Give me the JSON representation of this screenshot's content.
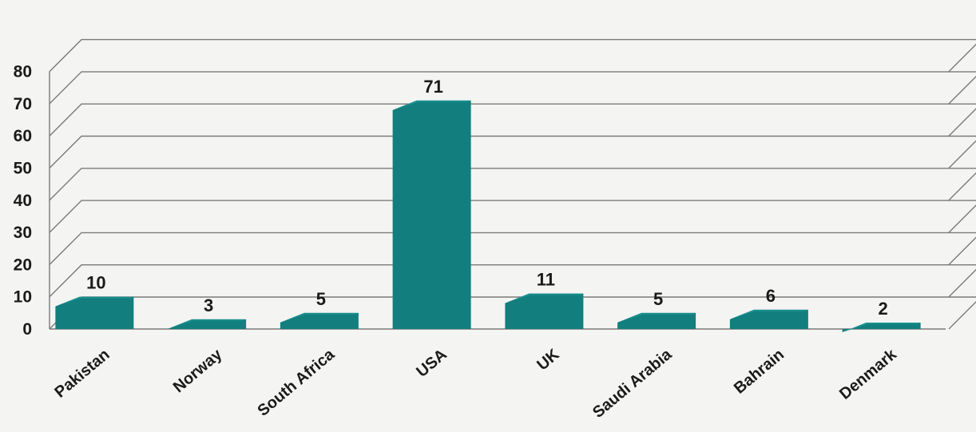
{
  "chart_data": {
    "type": "bar",
    "title": "",
    "xlabel": "",
    "ylabel": "",
    "categories": [
      "Pakistan",
      "Norway",
      "South Africa",
      "USA",
      "UK",
      "Saudi Arabia",
      "Bahrain",
      "Denmark"
    ],
    "values": [
      10,
      3,
      5,
      71,
      11,
      5,
      6,
      2
    ],
    "ylim": [
      0,
      80
    ],
    "yticks": [
      "0",
      "10",
      "20",
      "30",
      "40",
      "50",
      "60",
      "70",
      "80"
    ],
    "grid": true,
    "style": "3d",
    "bar_color": "#137e7e",
    "bar_top_color": "#1a9191"
  }
}
